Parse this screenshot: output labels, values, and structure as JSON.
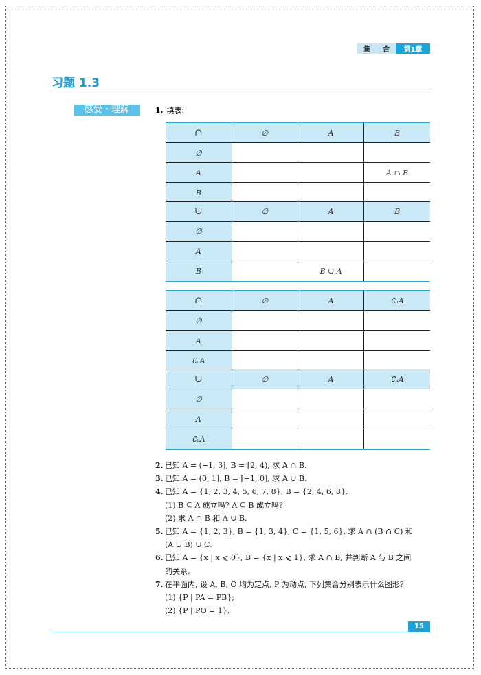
{
  "header": {
    "chapter_name_1": "集",
    "chapter_name_2": "合",
    "chapter_label": "第1章"
  },
  "title": "习题 1.3",
  "section_tag": "感受・理解",
  "q1": {
    "num": "1.",
    "text": "填表:"
  },
  "tables": [
    {
      "header": [
        "∩",
        "∅",
        "A",
        "B"
      ],
      "rows": [
        [
          "∅",
          "",
          "",
          ""
        ],
        [
          "A",
          "",
          "",
          "A ∩ B"
        ],
        [
          "B",
          "",
          "",
          ""
        ]
      ]
    },
    {
      "header": [
        "∪",
        "∅",
        "A",
        "B"
      ],
      "rows": [
        [
          "∅",
          "",
          "",
          ""
        ],
        [
          "A",
          "",
          "",
          ""
        ],
        [
          "B",
          "",
          "B ∪ A",
          ""
        ]
      ]
    },
    {
      "header": [
        "∩",
        "∅",
        "A",
        "∁ᵤA"
      ],
      "rows": [
        [
          "∅",
          "",
          "",
          ""
        ],
        [
          "A",
          "",
          "",
          ""
        ],
        [
          "∁ᵤA",
          "",
          "",
          ""
        ]
      ]
    },
    {
      "header": [
        "∪",
        "∅",
        "A",
        "∁ᵤA"
      ],
      "rows": [
        [
          "∅",
          "",
          "",
          ""
        ],
        [
          "A",
          "",
          "",
          ""
        ],
        [
          "∁ᵤA",
          "",
          "",
          ""
        ]
      ]
    }
  ],
  "questions": [
    {
      "num": "2.",
      "lines": [
        "已知 A = (−1, 3], B = [2, 4), 求 A ∩ B."
      ]
    },
    {
      "num": "3.",
      "lines": [
        "已知 A = (0, 1], B = [−1, 0], 求 A ∪ B."
      ]
    },
    {
      "num": "4.",
      "lines": [
        "已知 A = {1, 2, 3, 4, 5, 6, 7, 8}, B = {2, 4, 6, 8}.",
        "(1) B ⊆ A 成立吗? A ⊆ B 成立吗?",
        "(2) 求 A ∩ B 和 A ∪ B."
      ]
    },
    {
      "num": "5.",
      "lines": [
        "已知 A = {1, 2, 3}, B = {1, 3, 4}, C = {1, 5, 6}, 求 A ∩ (B ∩ C) 和",
        "(A ∪ B) ∪ C."
      ]
    },
    {
      "num": "6.",
      "lines": [
        "已知 A = {x | x ⩽ 0}, B = {x | x ⩽ 1}, 求 A ∩ B, 并判断 A 与 B 之间",
        "的关系."
      ]
    },
    {
      "num": "7.",
      "lines": [
        "在平面内, 设 A, B, O 均为定点, P 为动点, 下列集合分别表示什么图形?",
        "(1) {P | PA = PB};",
        "(2) {P | PO = 1}."
      ]
    }
  ],
  "page_number": "15"
}
